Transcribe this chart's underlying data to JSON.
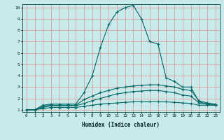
{
  "title": "",
  "xlabel": "Humidex (Indice chaleur)",
  "ylabel": "",
  "bg_color": "#c8eaea",
  "grid_color": "#d8a0a0",
  "line_color": "#006666",
  "xlim": [
    -0.5,
    23.5
  ],
  "ylim": [
    0.8,
    10.3
  ],
  "xticks": [
    0,
    1,
    2,
    3,
    4,
    5,
    6,
    7,
    8,
    9,
    10,
    11,
    12,
    13,
    14,
    15,
    16,
    17,
    18,
    19,
    20,
    21,
    22,
    23
  ],
  "yticks": [
    1,
    2,
    3,
    4,
    5,
    6,
    7,
    8,
    9,
    10
  ],
  "series": [
    {
      "x": [
        0,
        1,
        2,
        3,
        4,
        5,
        6,
        7,
        8,
        9,
        10,
        11,
        12,
        13,
        14,
        15,
        16,
        17,
        18,
        19,
        20,
        21,
        22,
        23
      ],
      "y": [
        1,
        1,
        1.4,
        1.5,
        1.5,
        1.5,
        1.5,
        2.5,
        4,
        6.5,
        8.5,
        9.6,
        10.0,
        10.2,
        9.0,
        7.0,
        6.8,
        3.8,
        3.5,
        3.0,
        3.0,
        1.7,
        1.5,
        1.4
      ],
      "marker": "+"
    },
    {
      "x": [
        0,
        1,
        2,
        3,
        4,
        5,
        6,
        7,
        8,
        9,
        10,
        11,
        12,
        13,
        14,
        15,
        16,
        17,
        18,
        19,
        20,
        21,
        22,
        23
      ],
      "y": [
        1,
        1,
        1.3,
        1.4,
        1.4,
        1.4,
        1.4,
        1.9,
        2.2,
        2.5,
        2.7,
        2.9,
        3.0,
        3.1,
        3.15,
        3.2,
        3.2,
        3.1,
        3.0,
        2.8,
        2.7,
        1.8,
        1.6,
        1.5
      ],
      "marker": "+"
    },
    {
      "x": [
        0,
        1,
        2,
        3,
        4,
        5,
        6,
        7,
        8,
        9,
        10,
        11,
        12,
        13,
        14,
        15,
        16,
        17,
        18,
        19,
        20,
        21,
        22,
        23
      ],
      "y": [
        1,
        1,
        1.2,
        1.35,
        1.35,
        1.35,
        1.35,
        1.55,
        1.8,
        2.0,
        2.2,
        2.4,
        2.5,
        2.6,
        2.65,
        2.7,
        2.7,
        2.6,
        2.5,
        2.3,
        2.2,
        1.6,
        1.5,
        1.4
      ],
      "marker": "+"
    },
    {
      "x": [
        0,
        1,
        2,
        3,
        4,
        5,
        6,
        7,
        8,
        9,
        10,
        11,
        12,
        13,
        14,
        15,
        16,
        17,
        18,
        19,
        20,
        21,
        22,
        23
      ],
      "y": [
        1,
        1,
        1.1,
        1.2,
        1.2,
        1.2,
        1.2,
        1.3,
        1.4,
        1.5,
        1.55,
        1.6,
        1.65,
        1.7,
        1.7,
        1.7,
        1.7,
        1.7,
        1.65,
        1.6,
        1.55,
        1.4,
        1.4,
        1.4
      ],
      "marker": "+"
    }
  ]
}
